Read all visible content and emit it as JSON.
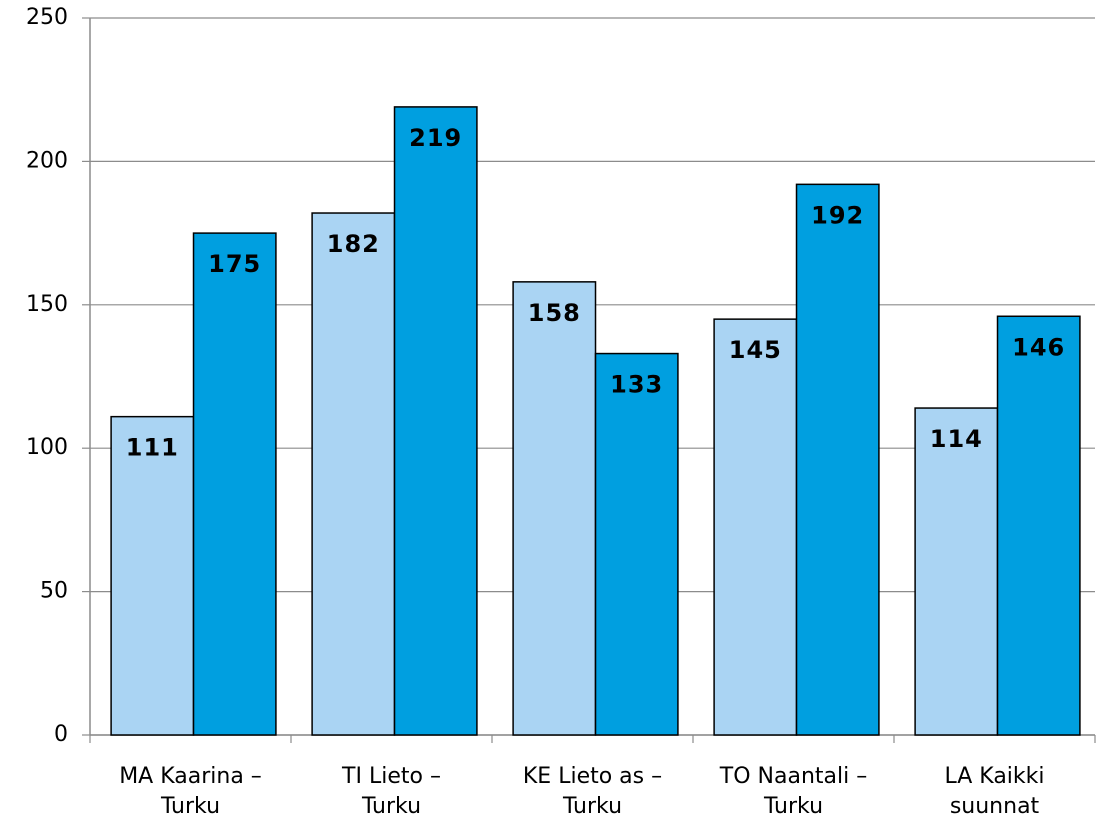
{
  "chart_data": {
    "type": "bar",
    "categories": [
      "MA Kaarina –\nTurku",
      "TI Lieto –\nTurku",
      "KE Lieto as –\nTurku",
      "TO Naantali –\nTurku",
      "LA Kaikki\nsuunnat"
    ],
    "series": [
      {
        "color": "#aad4f3",
        "values": [
          111,
          182,
          158,
          145,
          114
        ]
      },
      {
        "color": "#009fe0",
        "values": [
          175,
          219,
          133,
          192,
          146
        ]
      }
    ],
    "ylim": [
      0,
      250
    ],
    "yticks": [
      0,
      50,
      100,
      150,
      200,
      250
    ],
    "grid": true
  }
}
